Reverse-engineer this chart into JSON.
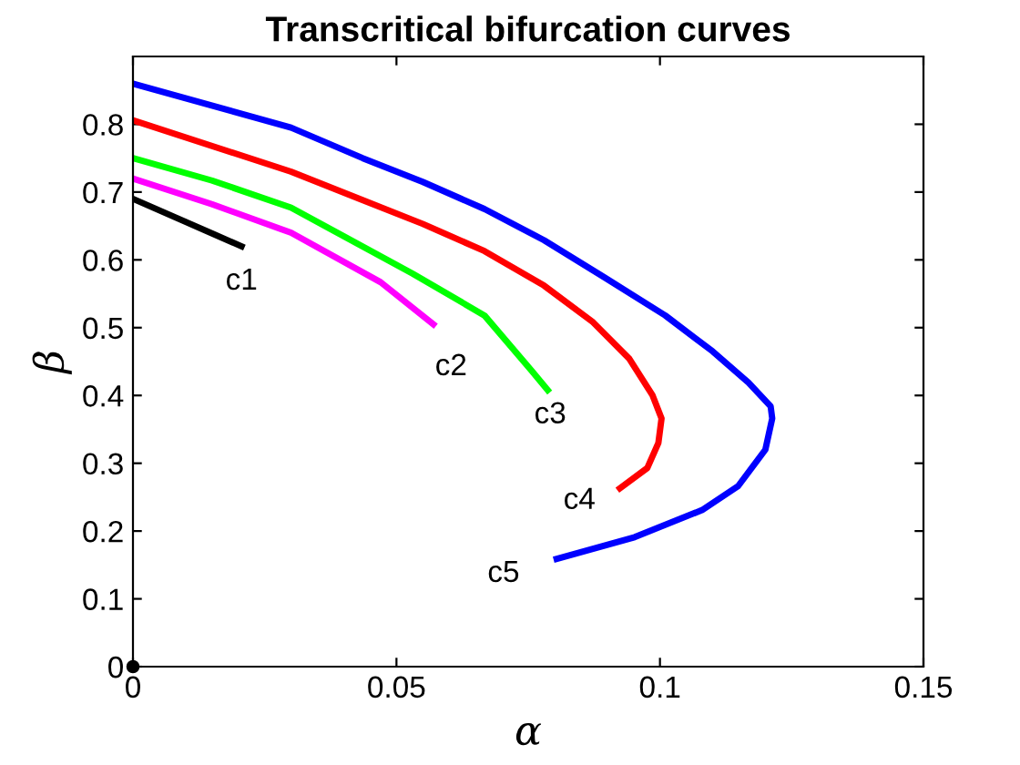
{
  "chart_data": {
    "type": "line",
    "title": "Transcritical bifurcation curves",
    "xlabel": "α",
    "ylabel": "β",
    "xlim": [
      0,
      0.15
    ],
    "xticks": [
      0,
      0.05,
      0.1,
      0.15
    ],
    "ylim": [
      0,
      0.9
    ],
    "yticks": [
      0,
      0.1,
      0.2,
      0.3,
      0.4,
      0.5,
      0.6,
      0.7,
      0.8
    ],
    "grid": false,
    "legend": false,
    "marker": "none",
    "line_style": "solid",
    "series": [
      {
        "color": "#000000",
        "x": [
          0,
          0.01,
          0.0206
        ],
        "values": [
          0.69,
          0.656,
          0.62
        ]
      },
      {
        "color": "#ff00ff",
        "x": [
          0,
          0.015,
          0.03,
          0.047,
          0.057
        ],
        "values": [
          0.72,
          0.682,
          0.64,
          0.567,
          0.505
        ]
      },
      {
        "color": "#00ff00",
        "x": [
          0,
          0.015,
          0.03,
          0.053,
          0.0667,
          0.0756,
          0.0787
        ],
        "values": [
          0.75,
          0.717,
          0.677,
          0.58,
          0.518,
          0.437,
          0.408
        ]
      },
      {
        "color": "#ff0000",
        "x": [
          0,
          0.03,
          0.0436,
          0.055,
          0.0667,
          0.078,
          0.0873,
          0.0942,
          0.0986,
          0.1003,
          0.0997,
          0.0976,
          0.0924
        ],
        "values": [
          0.806,
          0.73,
          0.688,
          0.653,
          0.613,
          0.562,
          0.508,
          0.454,
          0.4,
          0.366,
          0.33,
          0.293,
          0.263
        ]
      },
      {
        "color": "#0000ff",
        "x": [
          0,
          0.03,
          0.0436,
          0.055,
          0.0667,
          0.078,
          0.0893,
          0.101,
          0.11,
          0.1168,
          0.121,
          0.1213,
          0.12,
          0.1148,
          0.108,
          0.0952,
          0.0804
        ],
        "values": [
          0.86,
          0.795,
          0.75,
          0.715,
          0.675,
          0.629,
          0.575,
          0.518,
          0.465,
          0.419,
          0.384,
          0.366,
          0.32,
          0.266,
          0.231,
          0.191,
          0.159
        ]
      },
      {
        "type": "scatter",
        "color": "#000000",
        "x": [
          0
        ],
        "values": [
          0
        ],
        "marker": "circle"
      }
    ],
    "annotations": [
      {
        "text": "c1",
        "x": 0.0206,
        "y": 0.62
      },
      {
        "text": "c2",
        "x": 0.057,
        "y": 0.505
      },
      {
        "text": "c3",
        "x": 0.0787,
        "y": 0.408
      },
      {
        "text": "c4",
        "x": 0.0924,
        "y": 0.263
      },
      {
        "text": "c5",
        "x": 0.0804,
        "y": 0.159
      }
    ]
  }
}
